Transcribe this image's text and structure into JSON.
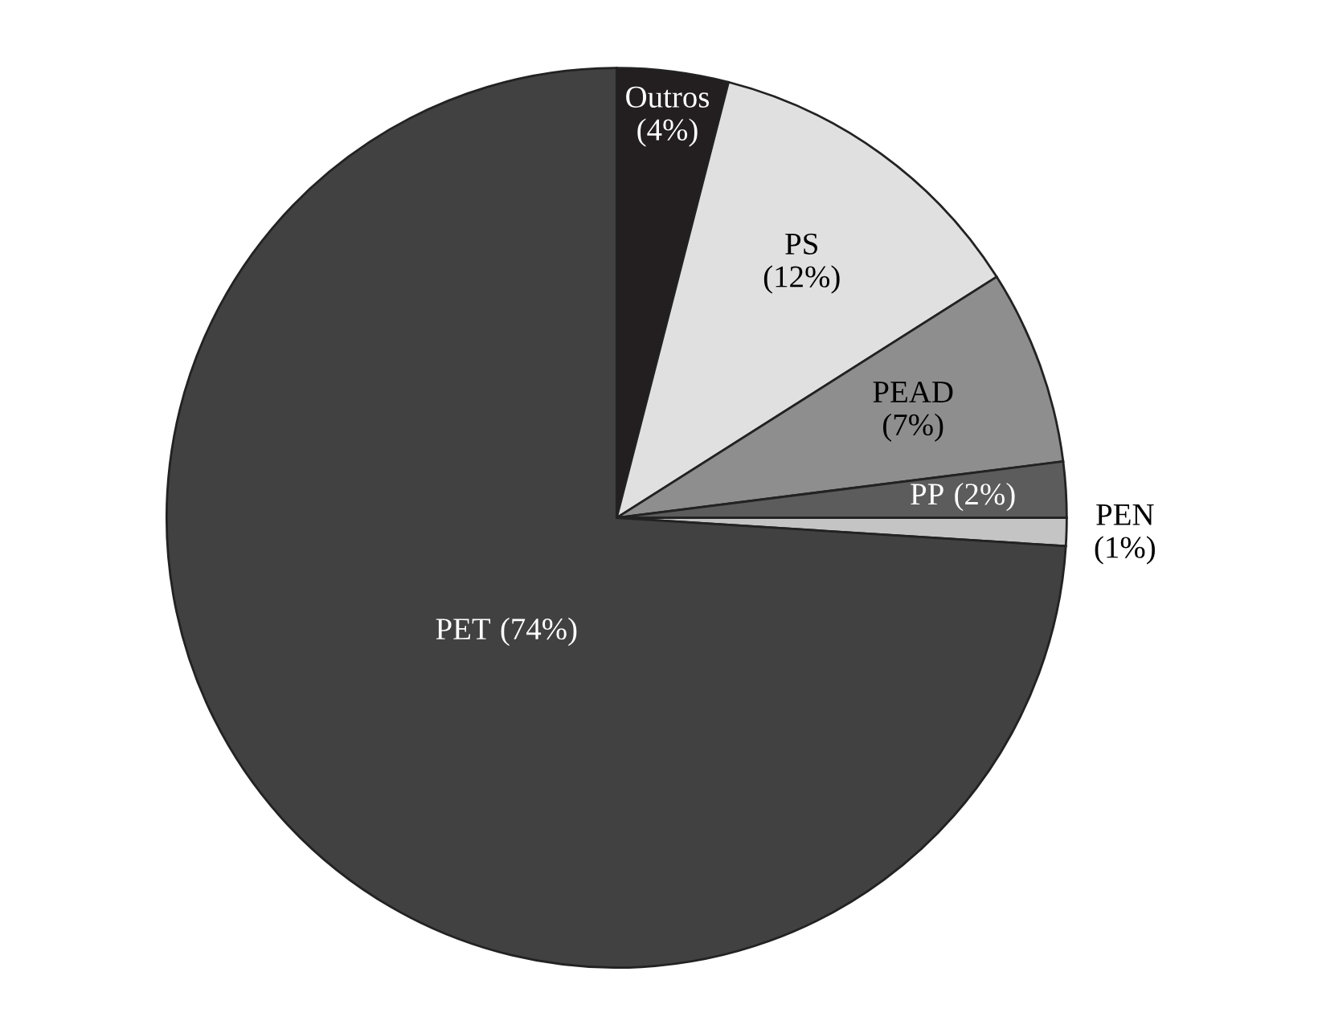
{
  "chart_data": {
    "type": "pie",
    "categories": [
      "Outros",
      "PS",
      "PEAD",
      "PP",
      "PEN",
      "PET"
    ],
    "values": [
      4,
      12,
      7,
      2,
      1,
      74
    ],
    "colors": [
      "#231f20",
      "#e0e0e0",
      "#8e8e8e",
      "#5c5c5c",
      "#c4c4c4",
      "#414141"
    ],
    "value_labels": [
      "(4%)",
      "(12%)",
      "(7%)",
      "(2%)",
      "(1%)",
      "(74%)"
    ]
  }
}
